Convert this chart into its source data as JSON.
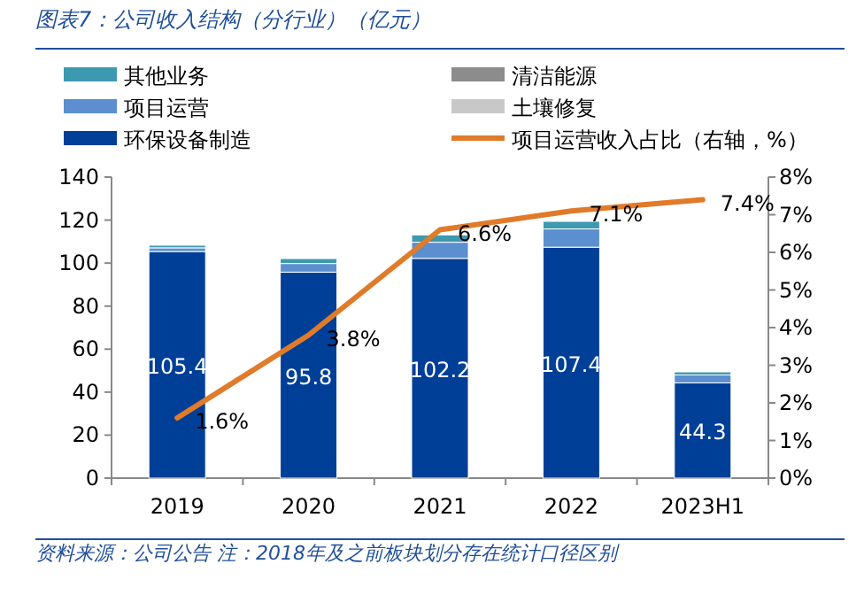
{
  "chart_data": {
    "type": "bar",
    "stacked": true,
    "title": "图表7：公司收入结构（分行业）（亿元）",
    "annotations": [
      "资料来源：公司公告 注：2018年及之前板块划分存在统计口径区别"
    ],
    "categories": [
      "2019",
      "2020",
      "2021",
      "2022",
      "2023H1"
    ],
    "series": [
      {
        "name": "环保设备制造",
        "color": "#003f98",
        "values": [
          105.4,
          95.8,
          102.2,
          107.4,
          44.3
        ],
        "value_labels": [
          "105.4",
          "95.8",
          "102.2",
          "107.4",
          "44.3"
        ]
      },
      {
        "name": "土壤修复",
        "color": "#c8c8c8",
        "values": [
          null,
          null,
          null,
          null,
          null
        ]
      },
      {
        "name": "项目运营",
        "color": "#5b8fd0",
        "values": [
          1.7,
          4.0,
          7.5,
          8.5,
          3.7
        ]
      },
      {
        "name": "清洁能源",
        "color": "#8c8c8c",
        "values": [
          null,
          null,
          null,
          null,
          null
        ]
      },
      {
        "name": "其他业务",
        "color": "#3c99b0",
        "values": [
          1.2,
          2.3,
          3.4,
          3.5,
          1.4
        ]
      },
      {
        "name": "项目运营收入占比（右轴，%）",
        "type": "line",
        "axis": "y2",
        "color": "#e07b2a",
        "values": [
          1.6,
          3.8,
          6.6,
          7.1,
          7.4
        ],
        "value_labels": [
          "1.6%",
          "3.8%",
          "6.6%",
          "7.1%",
          "7.4%"
        ]
      }
    ],
    "ylim": [
      0,
      140
    ],
    "yticks": [
      0,
      20,
      40,
      60,
      80,
      100,
      120,
      140
    ],
    "y2lim": [
      0,
      8
    ],
    "y2ticks": [
      {
        "value": 0,
        "label": "0%"
      },
      {
        "value": 1,
        "label": "1%"
      },
      {
        "value": 2,
        "label": "2%"
      },
      {
        "value": 3,
        "label": "3%"
      },
      {
        "value": 4,
        "label": "4%"
      },
      {
        "value": 5,
        "label": "5%"
      },
      {
        "value": 6,
        "label": "6%"
      },
      {
        "value": 7,
        "label": "7%"
      },
      {
        "value": 8,
        "label": "8%"
      }
    ],
    "legend": "top",
    "grid": false
  }
}
